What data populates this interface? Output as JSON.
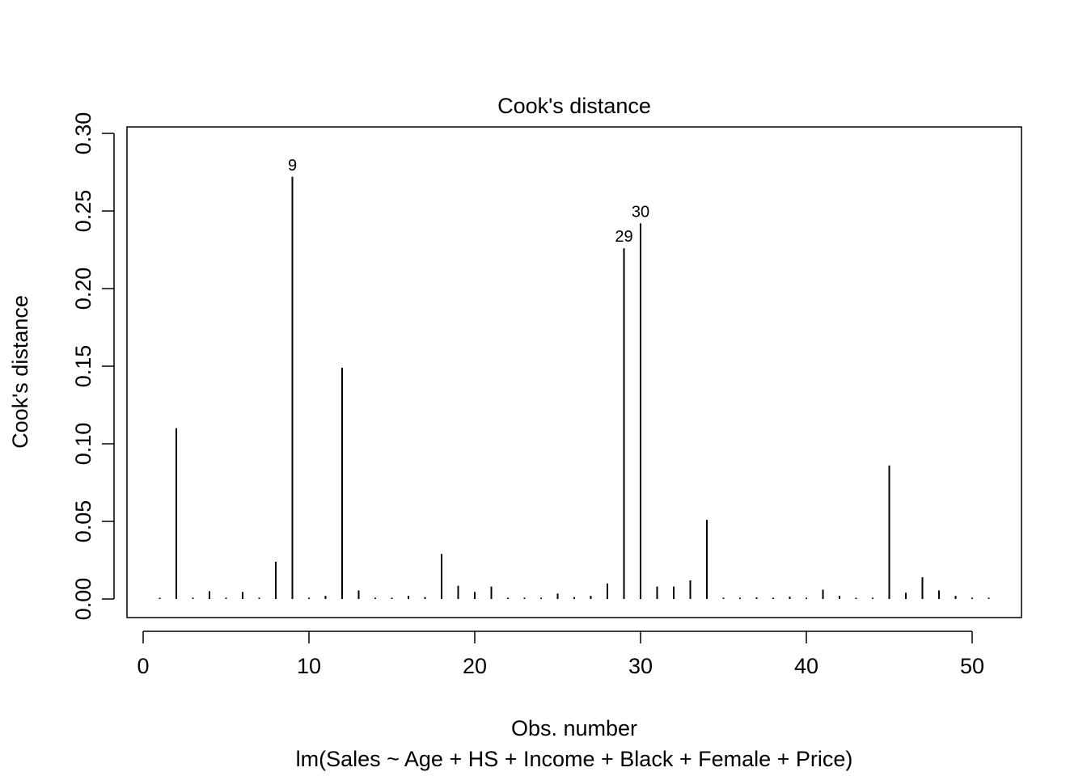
{
  "chart_data": {
    "type": "bar",
    "title": "Cook's distance",
    "xlabel": "Obs. number",
    "subtitle": "lm(Sales ~ Age + HS + Income + Black + Female + Price)",
    "ylabel": "Cook's distance",
    "xlim": [
      0,
      51
    ],
    "ylim": [
      0,
      0.3
    ],
    "x_ticks": [
      0,
      10,
      20,
      30,
      40,
      50
    ],
    "y_ticks": [
      0.0,
      0.05,
      0.1,
      0.15,
      0.2,
      0.25,
      0.3
    ],
    "y_tick_labels": [
      "0.00",
      "0.05",
      "0.10",
      "0.15",
      "0.20",
      "0.25",
      "0.30"
    ],
    "grid": false,
    "x": [
      1,
      2,
      3,
      4,
      5,
      6,
      7,
      8,
      9,
      10,
      11,
      12,
      13,
      14,
      15,
      16,
      17,
      18,
      19,
      20,
      21,
      22,
      23,
      24,
      25,
      26,
      27,
      28,
      29,
      30,
      31,
      32,
      33,
      34,
      35,
      36,
      37,
      38,
      39,
      40,
      41,
      42,
      43,
      44,
      45,
      46,
      47,
      48,
      49,
      50,
      51
    ],
    "values": [
      0.0003,
      0.11,
      0.0003,
      0.005,
      0.0005,
      0.0045,
      0.0008,
      0.024,
      0.272,
      0.0003,
      0.002,
      0.149,
      0.0055,
      0.0005,
      0.0003,
      0.002,
      0.0012,
      0.029,
      0.0085,
      0.0045,
      0.008,
      0.0003,
      0.0008,
      0.0004,
      0.0035,
      0.0012,
      0.002,
      0.01,
      0.226,
      0.242,
      0.008,
      0.008,
      0.012,
      0.051,
      0.0004,
      0.0005,
      0.001,
      0.0003,
      0.0015,
      0.0006,
      0.006,
      0.002,
      0.0003,
      0.0003,
      0.086,
      0.004,
      0.014,
      0.0055,
      0.002,
      0.0003,
      0.0002
    ],
    "annotations": [
      {
        "x": 9,
        "y": 0.272,
        "label": "9"
      },
      {
        "x": 29,
        "y": 0.226,
        "label": "29"
      },
      {
        "x": 30,
        "y": 0.242,
        "label": "30"
      }
    ]
  }
}
